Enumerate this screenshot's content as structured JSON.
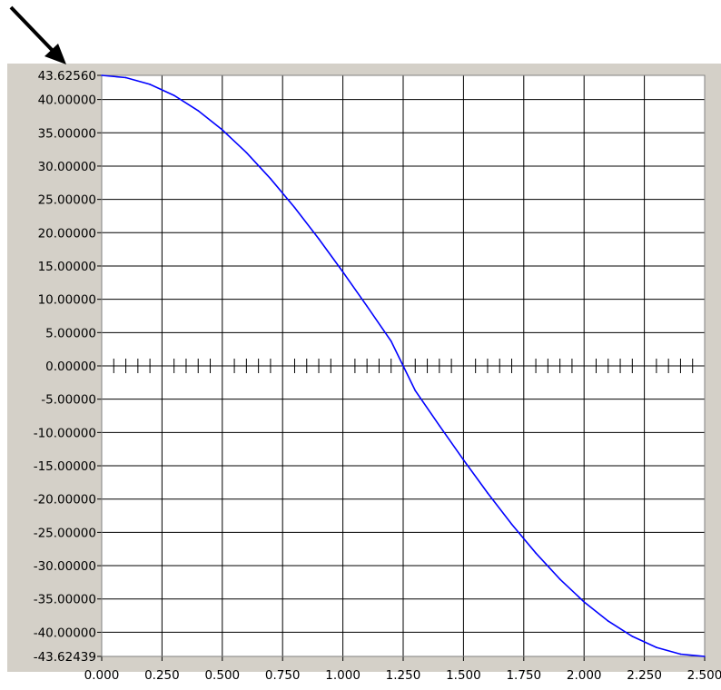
{
  "icons": {
    "pointer_arrow": "arrow-down-right-icon"
  },
  "colors": {
    "panel": "#d4d0c8",
    "plot_bg": "#ffffff",
    "grid": "#000000",
    "line": "#0000ff",
    "arrow": "#000000"
  },
  "chart_data": {
    "type": "line",
    "title": "",
    "xlabel": "",
    "ylabel": "",
    "xlim": [
      0,
      2.5
    ],
    "ylim": [
      -43.62439,
      43.6256
    ],
    "grid": true,
    "x_ticks": [
      0,
      0.25,
      0.5,
      0.75,
      1.0,
      1.25,
      1.5,
      1.75,
      2.0,
      2.25,
      2.5
    ],
    "x_tick_labels": [
      "0.000",
      "0.250",
      "0.500",
      "0.750",
      "1.000",
      "1.250",
      "1.500",
      "1.750",
      "2.000",
      "2.250",
      "2.500"
    ],
    "y_ticks": [
      43.6256,
      40,
      35,
      30,
      25,
      20,
      15,
      10,
      5,
      0,
      -5,
      -10,
      -15,
      -20,
      -25,
      -30,
      -35,
      -40,
      -43.62439
    ],
    "y_tick_labels": [
      "43.62560",
      "40.00000",
      "35.00000",
      "30.00000",
      "25.00000",
      "20.00000",
      "15.00000",
      "10.00000",
      "5.00000",
      "0.00000",
      "-5.00000",
      "-10.00000",
      "-15.00000",
      "-20.00000",
      "-25.00000",
      "-30.00000",
      "-35.00000",
      "-40.00000",
      "-43.62439"
    ],
    "zero_axis_minor_step": 0.05,
    "series": [
      {
        "color": "#0000ff",
        "x": [
          0,
          0.1,
          0.2,
          0.3,
          0.4,
          0.5,
          0.6,
          0.7,
          0.8,
          0.9,
          1.0,
          1.1,
          1.2,
          1.25,
          1.3,
          1.4,
          1.5,
          1.6,
          1.7,
          1.8,
          1.9,
          2.0,
          2.1,
          2.2,
          2.3,
          2.4,
          2.5
        ],
        "y": [
          43.6256,
          43.28,
          42.27,
          40.61,
          38.32,
          35.44,
          32.02,
          28.11,
          23.77,
          19.08,
          14.11,
          8.96,
          3.71,
          0.0,
          -3.71,
          -8.96,
          -14.11,
          -19.08,
          -23.77,
          -28.11,
          -32.02,
          -35.44,
          -38.32,
          -40.61,
          -42.27,
          -43.28,
          -43.62439
        ]
      }
    ]
  }
}
